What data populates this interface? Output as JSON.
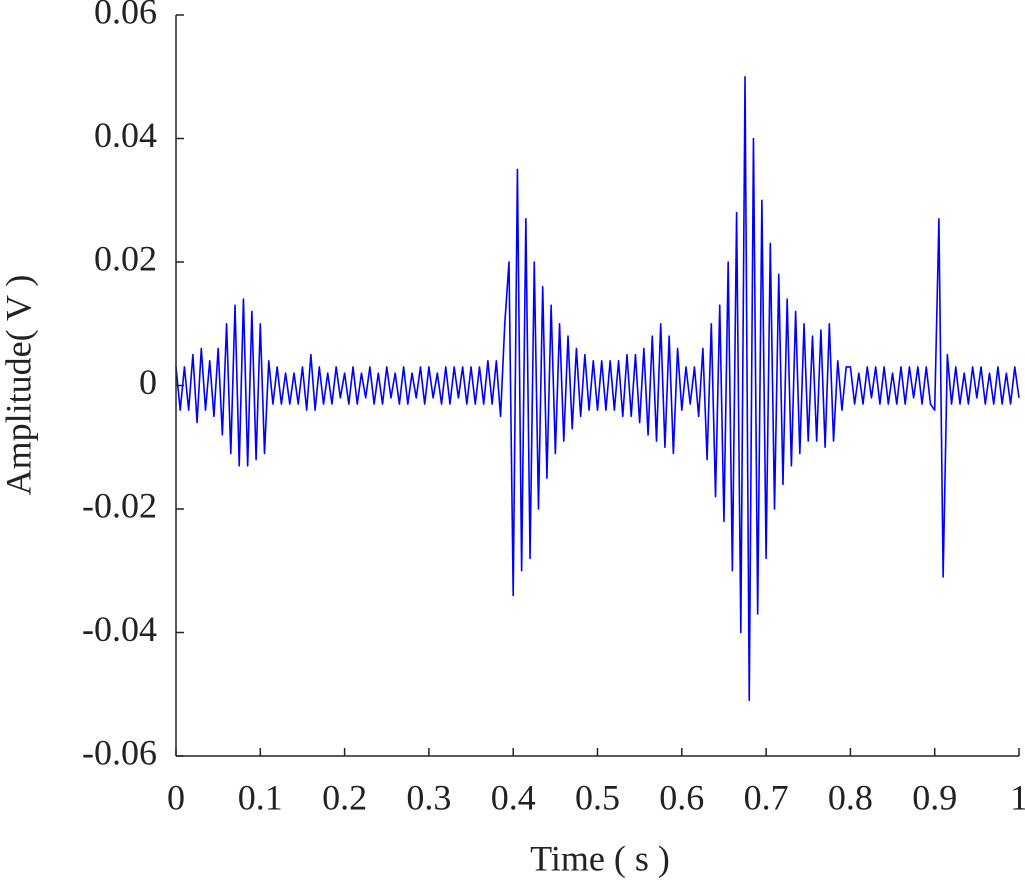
{
  "chart_data": {
    "type": "line",
    "xlabel": "Time ( s )",
    "ylabel": "Amplitude( V )",
    "xlim": [
      0,
      1
    ],
    "ylim": [
      -0.06,
      0.06
    ],
    "xticks": [
      0,
      0.1,
      0.2,
      0.3,
      0.4,
      0.5,
      0.6,
      0.7,
      0.8,
      0.9,
      1
    ],
    "yticks": [
      -0.06,
      -0.04,
      -0.02,
      0,
      0.02,
      0.04,
      0.06
    ],
    "x": [
      0,
      0.005,
      0.01,
      0.015,
      0.02,
      0.025,
      0.03,
      0.035,
      0.04,
      0.045,
      0.05,
      0.055,
      0.06,
      0.065,
      0.07,
      0.075,
      0.08,
      0.085,
      0.09,
      0.095,
      0.1,
      0.105,
      0.11,
      0.115,
      0.12,
      0.125,
      0.13,
      0.135,
      0.14,
      0.145,
      0.15,
      0.155,
      0.16,
      0.165,
      0.17,
      0.175,
      0.18,
      0.185,
      0.19,
      0.195,
      0.2,
      0.205,
      0.21,
      0.215,
      0.22,
      0.225,
      0.23,
      0.235,
      0.24,
      0.245,
      0.25,
      0.255,
      0.26,
      0.265,
      0.27,
      0.275,
      0.28,
      0.285,
      0.29,
      0.295,
      0.3,
      0.305,
      0.31,
      0.315,
      0.32,
      0.325,
      0.33,
      0.335,
      0.34,
      0.345,
      0.35,
      0.355,
      0.36,
      0.365,
      0.37,
      0.375,
      0.38,
      0.385,
      0.39,
      0.395,
      0.4,
      0.405,
      0.41,
      0.415,
      0.42,
      0.425,
      0.43,
      0.435,
      0.44,
      0.445,
      0.45,
      0.455,
      0.46,
      0.465,
      0.47,
      0.475,
      0.48,
      0.485,
      0.49,
      0.495,
      0.5,
      0.505,
      0.51,
      0.515,
      0.52,
      0.525,
      0.53,
      0.535,
      0.54,
      0.545,
      0.55,
      0.555,
      0.56,
      0.565,
      0.57,
      0.575,
      0.58,
      0.585,
      0.59,
      0.595,
      0.6,
      0.605,
      0.61,
      0.615,
      0.62,
      0.625,
      0.63,
      0.635,
      0.64,
      0.645,
      0.65,
      0.655,
      0.66,
      0.665,
      0.67,
      0.675,
      0.68,
      0.685,
      0.69,
      0.695,
      0.7,
      0.705,
      0.71,
      0.715,
      0.72,
      0.725,
      0.73,
      0.735,
      0.74,
      0.745,
      0.75,
      0.755,
      0.76,
      0.765,
      0.77,
      0.775,
      0.78,
      0.785,
      0.79,
      0.795,
      0.8,
      0.805,
      0.81,
      0.815,
      0.82,
      0.825,
      0.83,
      0.835,
      0.84,
      0.845,
      0.85,
      0.855,
      0.86,
      0.865,
      0.87,
      0.875,
      0.88,
      0.885,
      0.89,
      0.895,
      0.9,
      0.905,
      0.91,
      0.915,
      0.92,
      0.925,
      0.93,
      0.935,
      0.94,
      0.945,
      0.95,
      0.955,
      0.96,
      0.965,
      0.97,
      0.975,
      0.98,
      0.985,
      0.99,
      0.995,
      1
    ],
    "series": [
      {
        "color": "#0000ff",
        "values": [
          0.003,
          -0.004,
          0.003,
          -0.004,
          0.005,
          -0.006,
          0.006,
          -0.004,
          0.004,
          -0.005,
          0.006,
          -0.008,
          0.01,
          -0.011,
          0.013,
          -0.013,
          0.014,
          -0.013,
          0.012,
          -0.012,
          0.01,
          -0.011,
          0.004,
          -0.003,
          0.003,
          -0.003,
          0.002,
          -0.003,
          0.002,
          -0.003,
          0.003,
          -0.004,
          0.005,
          -0.004,
          0.003,
          -0.003,
          0.002,
          -0.003,
          0.003,
          -0.002,
          0.002,
          -0.003,
          0.003,
          -0.003,
          0.002,
          -0.002,
          0.003,
          -0.003,
          0.002,
          -0.003,
          0.003,
          -0.002,
          0.002,
          -0.003,
          0.003,
          -0.003,
          0.002,
          -0.002,
          0.003,
          -0.003,
          0.003,
          -0.002,
          0.002,
          -0.003,
          0.003,
          -0.003,
          0.003,
          -0.002,
          0.003,
          -0.003,
          0.003,
          -0.003,
          0.003,
          -0.003,
          0.004,
          -0.003,
          0.004,
          -0.005,
          0.01,
          0.02,
          -0.034,
          0.035,
          -0.03,
          0.027,
          -0.028,
          0.02,
          -0.02,
          0.016,
          -0.015,
          0.013,
          -0.011,
          0.01,
          -0.009,
          0.008,
          -0.007,
          0.006,
          -0.005,
          0.005,
          -0.004,
          0.004,
          -0.004,
          0.004,
          -0.004,
          0.004,
          -0.004,
          0.004,
          -0.005,
          0.005,
          -0.005,
          0.005,
          -0.006,
          0.006,
          -0.008,
          0.008,
          -0.009,
          0.01,
          -0.01,
          0.008,
          -0.011,
          0.006,
          -0.004,
          0.003,
          -0.003,
          0.003,
          -0.005,
          0.006,
          -0.012,
          0.01,
          -0.018,
          0.013,
          -0.022,
          0.02,
          -0.03,
          0.028,
          -0.04,
          0.05,
          -0.051,
          0.04,
          -0.037,
          0.03,
          -0.028,
          0.023,
          -0.02,
          0.018,
          -0.016,
          0.014,
          -0.013,
          0.012,
          -0.011,
          0.01,
          -0.009,
          0.008,
          -0.009,
          0.009,
          -0.01,
          0.01,
          -0.009,
          0.004,
          -0.004,
          0.003,
          0.003,
          -0.003,
          0.002,
          -0.003,
          0.003,
          -0.002,
          0.003,
          -0.003,
          0.003,
          -0.003,
          0.002,
          -0.003,
          0.003,
          -0.003,
          0.003,
          -0.002,
          0.003,
          -0.003,
          0.003,
          -0.003,
          -0.004,
          0.027,
          -0.031,
          0.005,
          -0.003,
          0.003,
          -0.003,
          0.002,
          -0.003,
          0.003,
          -0.002,
          0.003,
          -0.003,
          0.002,
          -0.003,
          0.003,
          -0.003,
          0.002,
          -0.003,
          0.003,
          -0.002
        ]
      }
    ]
  }
}
